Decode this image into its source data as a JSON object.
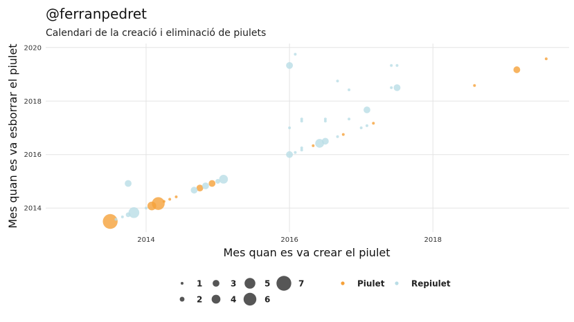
{
  "header": {
    "title": "@ferranpedret",
    "subtitle": "Calendari de la creació i eliminació de piulets"
  },
  "chart_data": {
    "type": "scatter",
    "title": "@ferranpedret",
    "subtitle": "Calendari de la creació i eliminació de piulets",
    "xlabel": "Mes quan es va crear el piulet",
    "ylabel": "Mes quan es va esborrar el piulet",
    "xlim": [
      2012.6,
      2019.9
    ],
    "ylim": [
      2013.1,
      2020.15
    ],
    "x_ticks": [
      2014,
      2016,
      2018
    ],
    "y_ticks": [
      2014,
      2016,
      2018,
      2020
    ],
    "grid": true,
    "colors": {
      "Piulet": "#f5a13a",
      "Repiulet": "#b9dde6"
    },
    "legend_position": "bottom",
    "size_legend": [
      1,
      2,
      3,
      4,
      5,
      6,
      7
    ],
    "series": [
      {
        "name": "Piulet",
        "points": [
          {
            "x": 2013.5,
            "y": 2013.5,
            "size": 7
          },
          {
            "x": 2014.08,
            "y": 2014.08,
            "size": 4
          },
          {
            "x": 2014.17,
            "y": 2014.17,
            "size": 6
          },
          {
            "x": 2014.25,
            "y": 2014.25,
            "size": 1
          },
          {
            "x": 2014.33,
            "y": 2014.33,
            "size": 1
          },
          {
            "x": 2014.42,
            "y": 2014.42,
            "size": 1
          },
          {
            "x": 2014.75,
            "y": 2014.75,
            "size": 3
          },
          {
            "x": 2014.92,
            "y": 2014.92,
            "size": 3
          },
          {
            "x": 2016.33,
            "y": 2016.33,
            "size": 1
          },
          {
            "x": 2016.75,
            "y": 2016.75,
            "size": 1
          },
          {
            "x": 2017.17,
            "y": 2017.17,
            "size": 1
          },
          {
            "x": 2018.58,
            "y": 2018.58,
            "size": 1
          },
          {
            "x": 2019.17,
            "y": 2019.17,
            "size": 3
          },
          {
            "x": 2019.58,
            "y": 2019.58,
            "size": 1
          }
        ]
      },
      {
        "name": "Repiulet",
        "points": [
          {
            "x": 2013.58,
            "y": 2013.58,
            "size": 1
          },
          {
            "x": 2013.67,
            "y": 2013.67,
            "size": 1
          },
          {
            "x": 2013.75,
            "y": 2013.75,
            "size": 2
          },
          {
            "x": 2013.75,
            "y": 2014.92,
            "size": 3
          },
          {
            "x": 2013.83,
            "y": 2013.83,
            "size": 5
          },
          {
            "x": 2014.0,
            "y": 2014.0,
            "size": 1
          },
          {
            "x": 2014.67,
            "y": 2014.67,
            "size": 3
          },
          {
            "x": 2014.83,
            "y": 2014.83,
            "size": 3
          },
          {
            "x": 2015.0,
            "y": 2015.0,
            "size": 2
          },
          {
            "x": 2015.08,
            "y": 2015.08,
            "size": 4
          },
          {
            "x": 2016.0,
            "y": 2016.0,
            "size": 3
          },
          {
            "x": 2016.0,
            "y": 2017.0,
            "size": 1
          },
          {
            "x": 2016.0,
            "y": 2019.33,
            "size": 3
          },
          {
            "x": 2016.08,
            "y": 2016.08,
            "size": 1
          },
          {
            "x": 2016.08,
            "y": 2019.75,
            "size": 1
          },
          {
            "x": 2016.17,
            "y": 2016.17,
            "size": 1
          },
          {
            "x": 2016.17,
            "y": 2016.25,
            "size": 1
          },
          {
            "x": 2016.17,
            "y": 2017.25,
            "size": 1
          },
          {
            "x": 2016.17,
            "y": 2017.33,
            "size": 1
          },
          {
            "x": 2016.42,
            "y": 2016.42,
            "size": 4
          },
          {
            "x": 2016.5,
            "y": 2016.5,
            "size": 3
          },
          {
            "x": 2016.5,
            "y": 2017.25,
            "size": 1
          },
          {
            "x": 2016.5,
            "y": 2017.33,
            "size": 1
          },
          {
            "x": 2016.67,
            "y": 2016.67,
            "size": 1
          },
          {
            "x": 2016.67,
            "y": 2018.75,
            "size": 1
          },
          {
            "x": 2016.83,
            "y": 2017.33,
            "size": 1
          },
          {
            "x": 2016.83,
            "y": 2018.42,
            "size": 1
          },
          {
            "x": 2017.0,
            "y": 2017.0,
            "size": 1
          },
          {
            "x": 2017.08,
            "y": 2017.08,
            "size": 1
          },
          {
            "x": 2017.08,
            "y": 2017.67,
            "size": 3
          },
          {
            "x": 2017.42,
            "y": 2018.5,
            "size": 1
          },
          {
            "x": 2017.42,
            "y": 2019.33,
            "size": 1
          },
          {
            "x": 2017.5,
            "y": 2018.5,
            "size": 3
          },
          {
            "x": 2017.5,
            "y": 2019.33,
            "size": 1
          }
        ]
      }
    ]
  }
}
